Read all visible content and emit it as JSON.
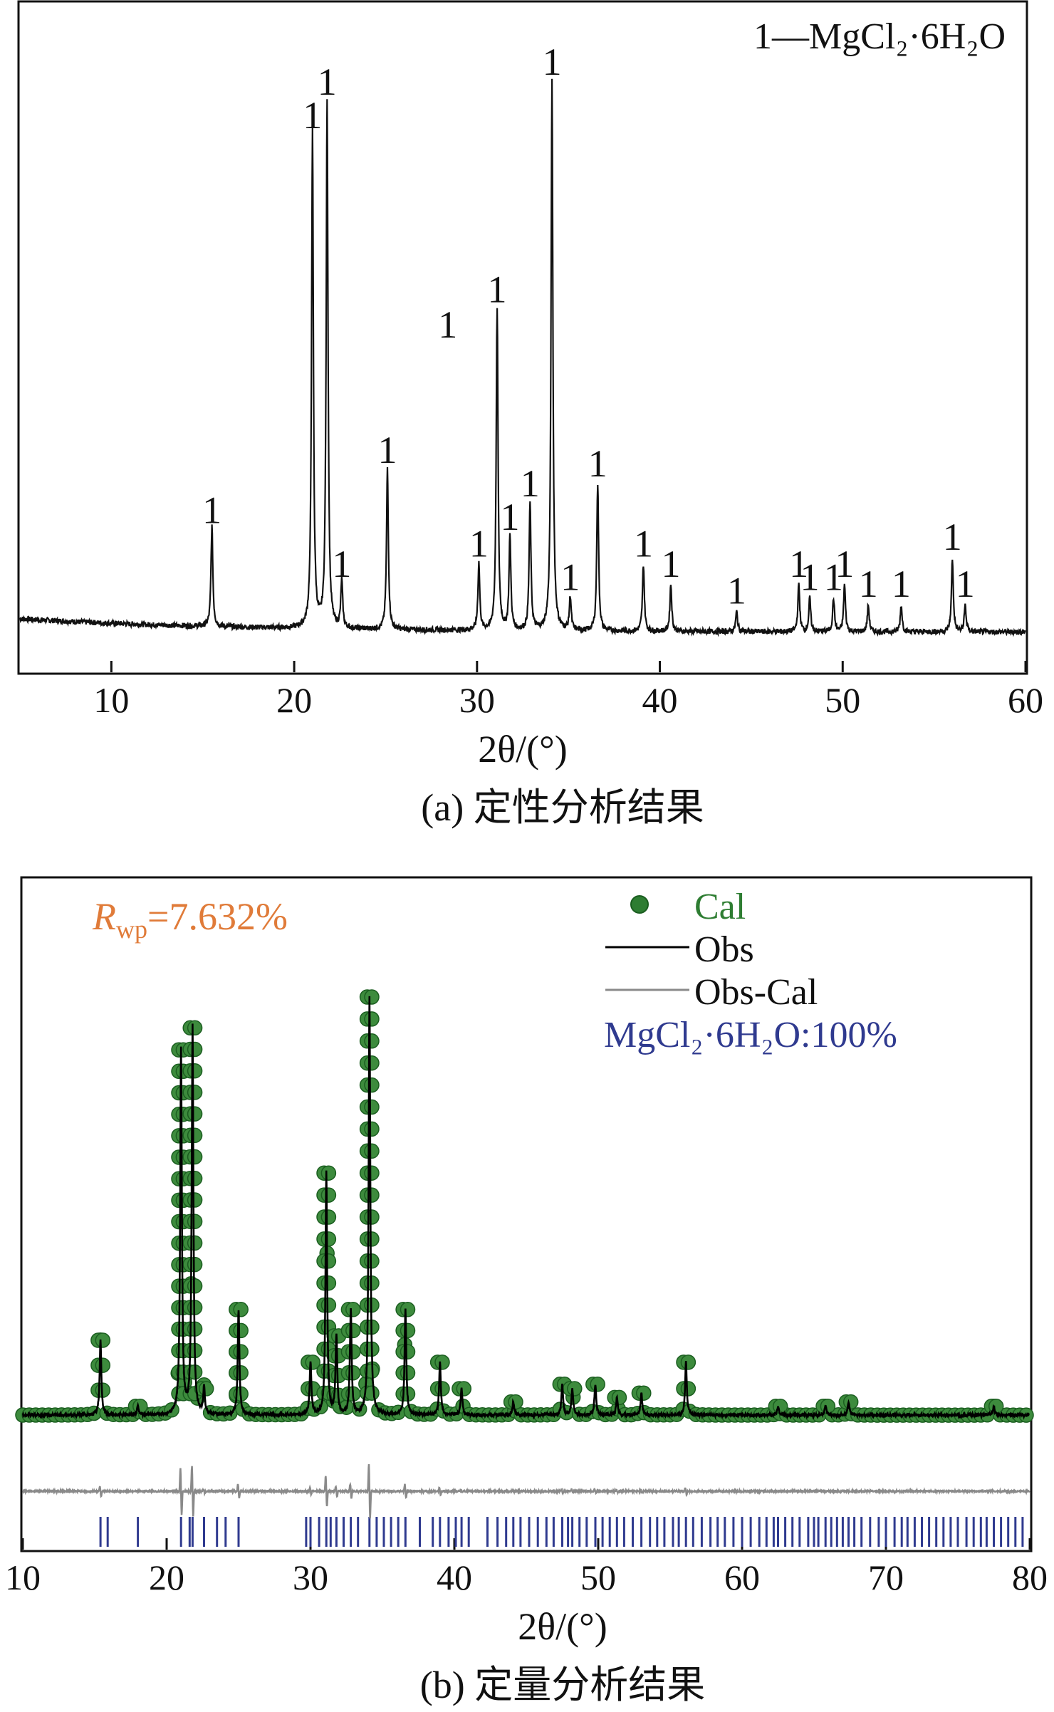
{
  "chart_data": [
    {
      "type": "line",
      "panel": "a",
      "caption": "(a) 定性分析结果",
      "legend_text": "1—MgCl₂·6H₂O",
      "legend_placement": "top-right",
      "xlabel": "2θ/(°)",
      "xlim": [
        5,
        60
      ],
      "xticks": [
        10,
        20,
        30,
        40,
        50,
        60
      ],
      "baseline": 0.06,
      "peaks": [
        {
          "x": 15.5,
          "h": 0.15,
          "label": "1"
        },
        {
          "x": 21.0,
          "h": 0.74,
          "label": "1"
        },
        {
          "x": 21.8,
          "h": 0.79,
          "label": "1"
        },
        {
          "x": 22.6,
          "h": 0.07,
          "label": "1"
        },
        {
          "x": 25.1,
          "h": 0.24,
          "label": "1"
        },
        {
          "x": 30.1,
          "h": 0.1,
          "label": "1"
        },
        {
          "x": 31.1,
          "h": 0.48,
          "label": "1"
        },
        {
          "x": 31.8,
          "h": 0.14,
          "label": "1"
        },
        {
          "x": 32.9,
          "h": 0.19,
          "label": "1"
        },
        {
          "x": 34.1,
          "h": 0.82,
          "label": "1"
        },
        {
          "x": 35.1,
          "h": 0.05,
          "label": "1"
        },
        {
          "x": 36.6,
          "h": 0.22,
          "label": "1"
        },
        {
          "x": 39.1,
          "h": 0.1,
          "label": "1"
        },
        {
          "x": 40.6,
          "h": 0.07,
          "label": "1"
        },
        {
          "x": 44.2,
          "h": 0.03,
          "label": "1"
        },
        {
          "x": 47.6,
          "h": 0.07,
          "label": "1"
        },
        {
          "x": 48.2,
          "h": 0.05,
          "label": "1"
        },
        {
          "x": 49.5,
          "h": 0.05,
          "label": "1"
        },
        {
          "x": 50.1,
          "h": 0.07,
          "label": "1"
        },
        {
          "x": 51.4,
          "h": 0.04,
          "label": "1"
        },
        {
          "x": 53.2,
          "h": 0.04,
          "label": "1"
        },
        {
          "x": 56.0,
          "h": 0.11,
          "label": "1"
        },
        {
          "x": 56.7,
          "h": 0.04,
          "label": "1"
        }
      ],
      "extra_labels": [
        {
          "x": 28.4,
          "y": 0.5,
          "label": "1"
        }
      ]
    },
    {
      "type": "scatter",
      "panel": "b",
      "caption": "(b) 定量分析结果",
      "xlabel": "2θ/(°)",
      "xlim": [
        10,
        80
      ],
      "xticks": [
        10,
        20,
        30,
        40,
        50,
        60,
        70,
        80
      ],
      "rwp_symbol": "R",
      "rwp_subscript": "wp",
      "rwp_value": "=7.632%",
      "legend_placement": "top-right",
      "series": [
        {
          "name": "Cal",
          "color": "#2e7d32"
        },
        {
          "name": "Obs",
          "color": "#000000"
        },
        {
          "name": "Obs-Cal",
          "color": "#8a8a8a"
        }
      ],
      "phase_text": "MgCl₂·6H₂O:100%",
      "phase_color": "#2f3a8f",
      "baseline": 0.05,
      "peaks": [
        {
          "x": 15.4,
          "h": 0.17
        },
        {
          "x": 18.0,
          "h": 0.02
        },
        {
          "x": 21.0,
          "h": 0.83
        },
        {
          "x": 21.8,
          "h": 0.88
        },
        {
          "x": 22.6,
          "h": 0.06
        },
        {
          "x": 25.0,
          "h": 0.24
        },
        {
          "x": 30.0,
          "h": 0.12
        },
        {
          "x": 31.1,
          "h": 0.55
        },
        {
          "x": 31.8,
          "h": 0.18
        },
        {
          "x": 32.8,
          "h": 0.24
        },
        {
          "x": 34.1,
          "h": 0.95
        },
        {
          "x": 36.6,
          "h": 0.24
        },
        {
          "x": 39.0,
          "h": 0.12
        },
        {
          "x": 40.5,
          "h": 0.06
        },
        {
          "x": 44.1,
          "h": 0.03
        },
        {
          "x": 47.5,
          "h": 0.07
        },
        {
          "x": 48.2,
          "h": 0.06
        },
        {
          "x": 49.8,
          "h": 0.07
        },
        {
          "x": 51.3,
          "h": 0.04
        },
        {
          "x": 53.0,
          "h": 0.05
        },
        {
          "x": 56.1,
          "h": 0.12
        },
        {
          "x": 62.5,
          "h": 0.02
        },
        {
          "x": 65.8,
          "h": 0.02
        },
        {
          "x": 67.4,
          "h": 0.03
        },
        {
          "x": 77.5,
          "h": 0.02
        }
      ],
      "reflections": [
        15.4,
        15.9,
        18.0,
        21.0,
        21.6,
        21.8,
        22.6,
        23.5,
        24.1,
        25.0,
        29.7,
        30.0,
        30.6,
        31.1,
        31.4,
        31.8,
        32.3,
        32.8,
        33.3,
        34.1,
        34.6,
        35.1,
        35.6,
        36.1,
        36.6,
        37.6,
        38.5,
        39.0,
        39.6,
        40.1,
        40.5,
        41.0,
        42.3,
        43.0,
        43.6,
        44.1,
        44.6,
        45.2,
        45.8,
        46.4,
        46.9,
        47.5,
        47.9,
        48.2,
        48.7,
        49.2,
        49.8,
        50.3,
        50.8,
        51.3,
        51.8,
        52.4,
        53.0,
        53.6,
        54.1,
        54.6,
        55.2,
        55.6,
        56.1,
        56.6,
        57.2,
        57.8,
        58.3,
        58.8,
        59.4,
        60.0,
        60.6,
        61.2,
        61.7,
        62.2,
        62.5,
        63.0,
        63.5,
        64.0,
        64.6,
        65.0,
        65.3,
        65.8,
        66.2,
        66.6,
        67.0,
        67.4,
        67.8,
        68.3,
        68.9,
        69.5,
        70.0,
        70.6,
        71.1,
        71.5,
        72.0,
        72.5,
        73.0,
        73.5,
        74.0,
        74.5,
        75.0,
        75.6,
        76.1,
        76.6,
        77.0,
        77.5,
        78.0,
        78.5,
        79.0,
        79.5
      ]
    }
  ]
}
